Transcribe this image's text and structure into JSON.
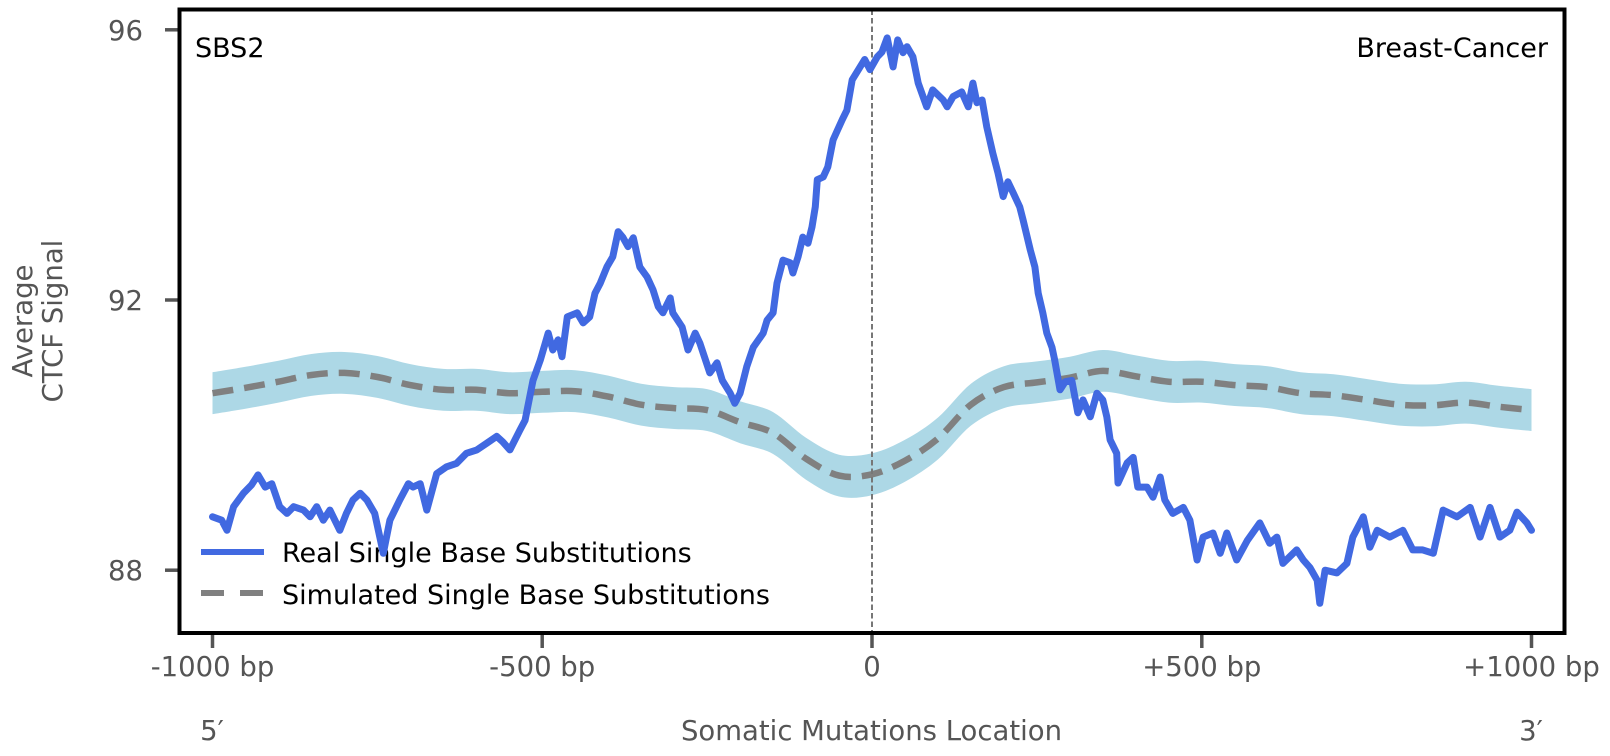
{
  "chart_data": {
    "type": "line",
    "title": "",
    "panel_label_left": "SBS2",
    "panel_label_right": "Breast-Cancer",
    "xlabel": "Somatic Mutations Location",
    "ylabel": [
      "Average",
      "CTCF Signal"
    ],
    "xlim": [
      -1050,
      1050
    ],
    "ylim": [
      87.07,
      96.3
    ],
    "grid": false,
    "x_ticks": [
      -1000,
      -500,
      0,
      500,
      1000
    ],
    "x_tick_labels": [
      "-1000 bp",
      "-500 bp",
      "0",
      "+500 bp",
      "+1000 bp"
    ],
    "y_ticks": [
      88,
      92,
      96
    ],
    "y_tick_labels": [
      "88",
      "92",
      "96"
    ],
    "x_end_labels": {
      "left": "5′",
      "right": "3′"
    },
    "reference_line": {
      "x": 0,
      "style": "dashed",
      "color": "#777777"
    },
    "legend": {
      "position": "lower-left"
    },
    "series": [
      {
        "name": "Real Single Base Substitutions",
        "color": "#4169E1",
        "style": "solid",
        "x": [
          -1000,
          -986,
          -978,
          -968,
          -953,
          -941,
          -931,
          -920,
          -910,
          -898,
          -887,
          -877,
          -862,
          -852,
          -842,
          -832,
          -822,
          -807,
          -797,
          -787,
          -776,
          -766,
          -754,
          -741,
          -731,
          -716,
          -703,
          -696,
          -685,
          -675,
          -660,
          -645,
          -630,
          -615,
          -599,
          -584,
          -569,
          -560,
          -549,
          -534,
          -526,
          -514,
          -503,
          -491,
          -484,
          -476,
          -470,
          -462,
          -447,
          -438,
          -428,
          -420,
          -412,
          -402,
          -393,
          -385,
          -378,
          -370,
          -362,
          -352,
          -341,
          -332,
          -324,
          -317,
          -306,
          -302,
          -288,
          -279,
          -268,
          -261,
          -246,
          -235,
          -227,
          -215,
          -208,
          -200,
          -190,
          -180,
          -165,
          -159,
          -150,
          -144,
          -135,
          -124,
          -120,
          -112,
          -105,
          -97,
          -91,
          -86,
          -83,
          -74,
          -67,
          -59,
          -52,
          -45,
          -38,
          -30,
          -18,
          -11,
          -3,
          8,
          15,
          23,
          32,
          39,
          47,
          53,
          62,
          70,
          83,
          92,
          108,
          114,
          123,
          136,
          146,
          153,
          159,
          167,
          174,
          183,
          191,
          199,
          206,
          214,
          224,
          229,
          240,
          247,
          252,
          259,
          265,
          273,
          277,
          285,
          293,
          303,
          312,
          320,
          331,
          341,
          350,
          356,
          361,
          371,
          373,
          387,
          396,
          403,
          417,
          426,
          437,
          444,
          456,
          472,
          482,
          493,
          502,
          517,
          528,
          538,
          553,
          569,
          588,
          603,
          614,
          623,
          644,
          654,
          664,
          675,
          679,
          687,
          705,
          720,
          729,
          745,
          755,
          766,
          785,
          805,
          820,
          835,
          851,
          866,
          887,
          907,
          922,
          937,
          952,
          967,
          978,
          993,
          1000
        ],
        "y": [
          88.79,
          88.74,
          88.59,
          88.94,
          89.14,
          89.26,
          89.41,
          89.23,
          89.28,
          88.94,
          88.84,
          88.94,
          88.89,
          88.79,
          88.94,
          88.74,
          88.89,
          88.59,
          88.84,
          89.04,
          89.14,
          89.04,
          88.84,
          88.25,
          88.74,
          89.04,
          89.28,
          89.23,
          89.28,
          88.89,
          89.43,
          89.53,
          89.58,
          89.73,
          89.78,
          89.88,
          89.98,
          89.9,
          89.78,
          90.07,
          90.22,
          90.81,
          91.11,
          91.51,
          91.26,
          91.41,
          91.16,
          91.75,
          91.81,
          91.66,
          91.75,
          92.1,
          92.25,
          92.49,
          92.64,
          93.01,
          92.93,
          92.79,
          92.92,
          92.49,
          92.34,
          92.15,
          91.9,
          91.81,
          92.03,
          91.81,
          91.6,
          91.26,
          91.51,
          91.36,
          90.92,
          91.07,
          90.81,
          90.62,
          90.47,
          90.62,
          91.01,
          91.3,
          91.51,
          91.7,
          91.81,
          92.25,
          92.59,
          92.55,
          92.4,
          92.64,
          92.93,
          92.84,
          93.08,
          93.38,
          93.78,
          93.82,
          93.97,
          94.37,
          94.52,
          94.67,
          94.81,
          95.26,
          95.45,
          95.56,
          95.41,
          95.6,
          95.67,
          95.88,
          95.45,
          95.85,
          95.66,
          95.75,
          95.6,
          95.21,
          94.86,
          95.11,
          94.96,
          94.86,
          95.01,
          95.08,
          94.86,
          95.21,
          94.92,
          94.96,
          94.56,
          94.18,
          93.88,
          93.53,
          93.75,
          93.59,
          93.38,
          93.19,
          92.74,
          92.49,
          92.1,
          91.81,
          91.51,
          91.3,
          91.11,
          90.67,
          90.79,
          90.81,
          90.33,
          90.52,
          90.27,
          90.62,
          90.52,
          90.27,
          89.93,
          89.73,
          89.29,
          89.59,
          89.67,
          89.23,
          89.23,
          89.08,
          89.38,
          89.04,
          88.84,
          88.93,
          88.74,
          88.15,
          88.49,
          88.55,
          88.25,
          88.55,
          88.15,
          88.44,
          88.7,
          88.4,
          88.49,
          88.1,
          88.3,
          88.15,
          88.04,
          87.85,
          87.51,
          88.0,
          87.96,
          88.1,
          88.49,
          88.79,
          88.34,
          88.59,
          88.49,
          88.59,
          88.3,
          88.3,
          88.25,
          88.89,
          88.79,
          88.93,
          88.49,
          88.93,
          88.49,
          88.59,
          88.86,
          88.7,
          88.59
        ]
      },
      {
        "name": "Simulated Single Base Substitutions",
        "color": "#808080",
        "style": "dashed",
        "band_color": "#ADD8E6",
        "x": [
          -1000,
          -950,
          -900,
          -850,
          -800,
          -750,
          -700,
          -650,
          -600,
          -550,
          -500,
          -450,
          -400,
          -350,
          -300,
          -250,
          -200,
          -150,
          -100,
          -50,
          0,
          50,
          100,
          150,
          200,
          250,
          300,
          350,
          400,
          450,
          500,
          550,
          600,
          650,
          700,
          750,
          800,
          850,
          900,
          950,
          1000
        ],
        "y": [
          90.62,
          90.7,
          90.79,
          90.89,
          90.92,
          90.86,
          90.74,
          90.67,
          90.67,
          90.62,
          90.64,
          90.65,
          90.57,
          90.45,
          90.4,
          90.37,
          90.19,
          90.03,
          89.65,
          89.4,
          89.42,
          89.62,
          89.95,
          90.45,
          90.71,
          90.78,
          90.85,
          90.95,
          90.87,
          90.79,
          90.79,
          90.74,
          90.71,
          90.62,
          90.59,
          90.52,
          90.45,
          90.44,
          90.48,
          90.42,
          90.37
        ],
        "lower": [
          90.31,
          90.39,
          90.48,
          90.58,
          90.61,
          90.55,
          90.43,
          90.36,
          90.36,
          90.31,
          90.33,
          90.34,
          90.26,
          90.14,
          90.09,
          90.06,
          89.88,
          89.72,
          89.34,
          89.09,
          89.11,
          89.31,
          89.64,
          90.14,
          90.4,
          90.47,
          90.54,
          90.64,
          90.56,
          90.48,
          90.48,
          90.43,
          90.4,
          90.31,
          90.28,
          90.21,
          90.14,
          90.13,
          90.17,
          90.11,
          90.06
        ],
        "upper": [
          90.93,
          91.01,
          91.1,
          91.2,
          91.23,
          91.17,
          91.05,
          90.98,
          90.98,
          90.93,
          90.95,
          90.96,
          90.88,
          90.76,
          90.71,
          90.68,
          90.5,
          90.34,
          89.96,
          89.71,
          89.73,
          89.93,
          90.26,
          90.76,
          91.02,
          91.09,
          91.16,
          91.26,
          91.18,
          91.1,
          91.1,
          91.05,
          91.02,
          90.93,
          90.9,
          90.83,
          90.76,
          90.75,
          90.79,
          90.73,
          90.68
        ]
      }
    ]
  }
}
